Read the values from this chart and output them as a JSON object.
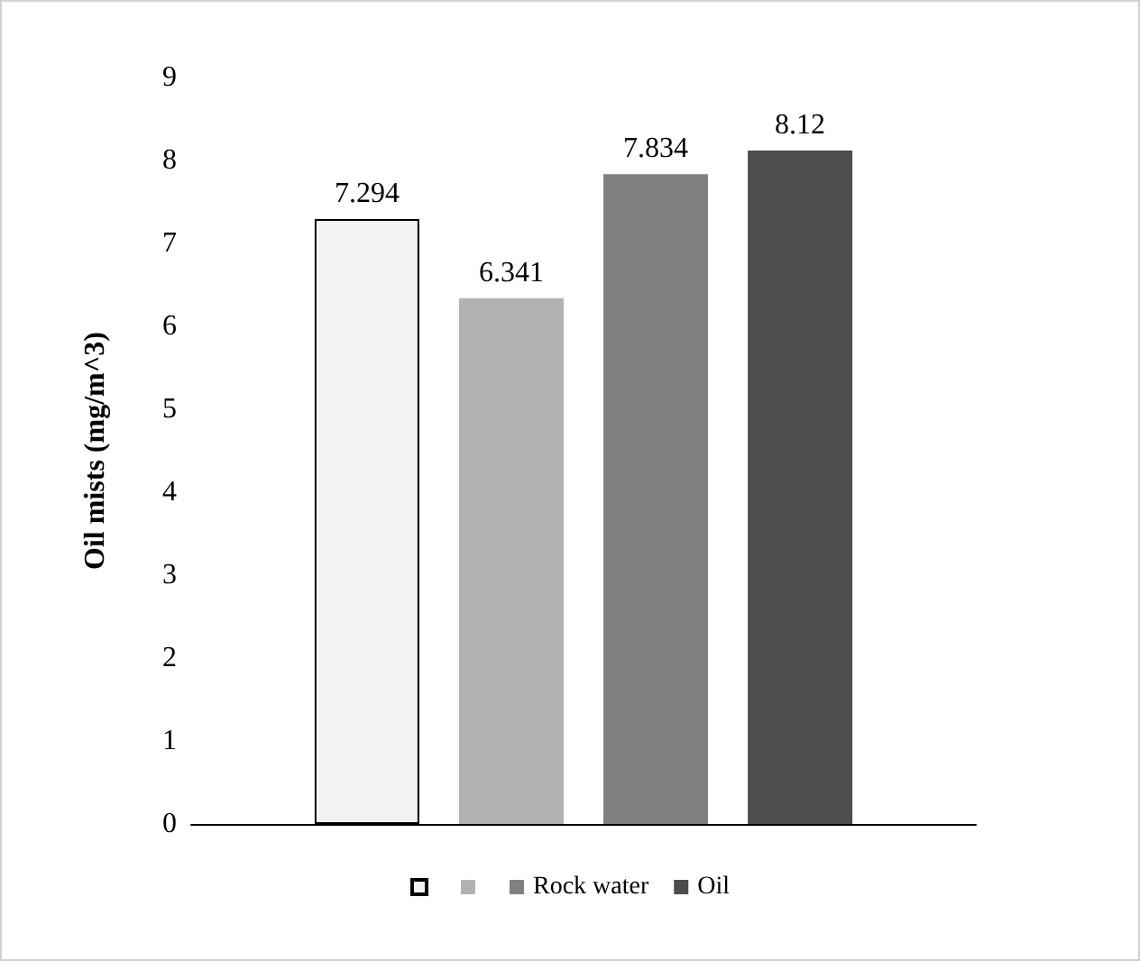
{
  "chart_data": {
    "type": "bar",
    "ylabel": "Oil mists (mg/m^3)",
    "categories": [
      null
    ],
    "series": [
      {
        "color": "#f2f2f2",
        "values": [
          7.294
        ]
      },
      {
        "color": "#b2b2b2",
        "values": [
          6.341
        ]
      },
      {
        "name": "Rock water",
        "color": "#808080",
        "values": [
          7.834
        ]
      },
      {
        "name": "Oil",
        "color": "#4d4d4d",
        "values": [
          8.12
        ]
      }
    ],
    "ylim": [
      0,
      9
    ],
    "yticks": [
      0,
      1,
      2,
      3,
      4,
      5,
      6,
      7,
      8,
      9
    ],
    "grid": false,
    "legend": "bottom",
    "data_labels": true
  }
}
